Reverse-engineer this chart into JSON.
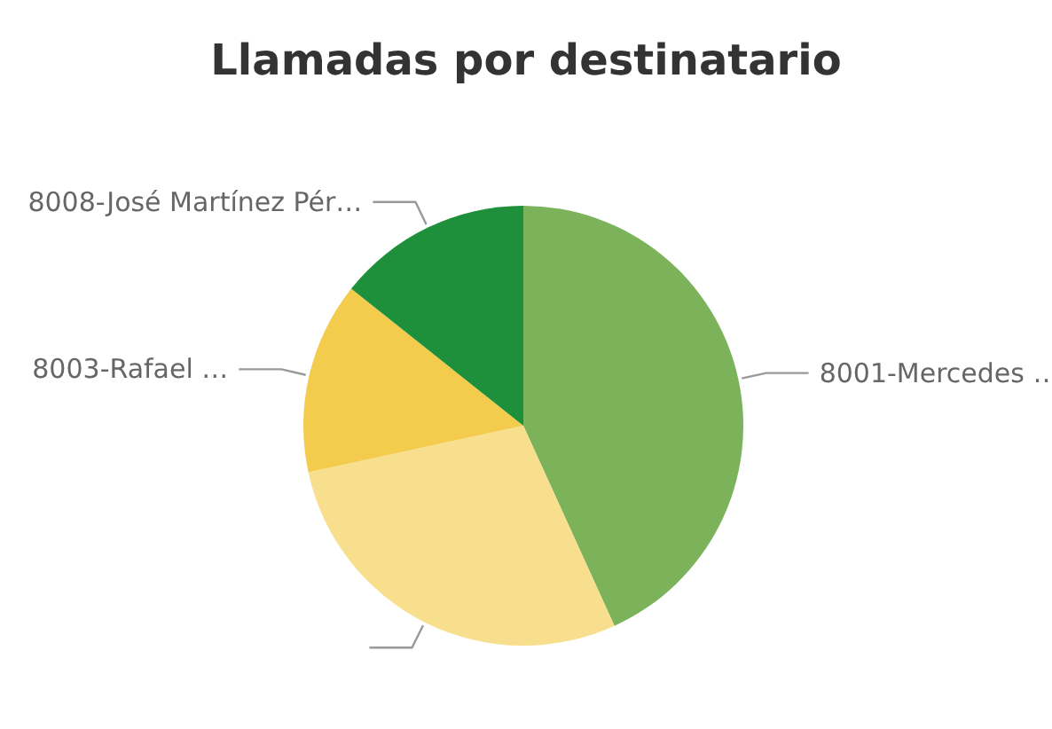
{
  "chart_data": {
    "type": "pie",
    "title": "Llamadas por destinatario",
    "categories": [
      "8001-Mercedes …",
      null,
      "8003-Rafael …",
      "8008-José Martínez Pér…"
    ],
    "values": [
      43.2,
      28.4,
      14.1,
      14.3
    ],
    "colors": [
      "#7cb35a",
      "#f7df8e",
      "#f3cc4d",
      "#1e8f3a"
    ],
    "legend": false
  }
}
